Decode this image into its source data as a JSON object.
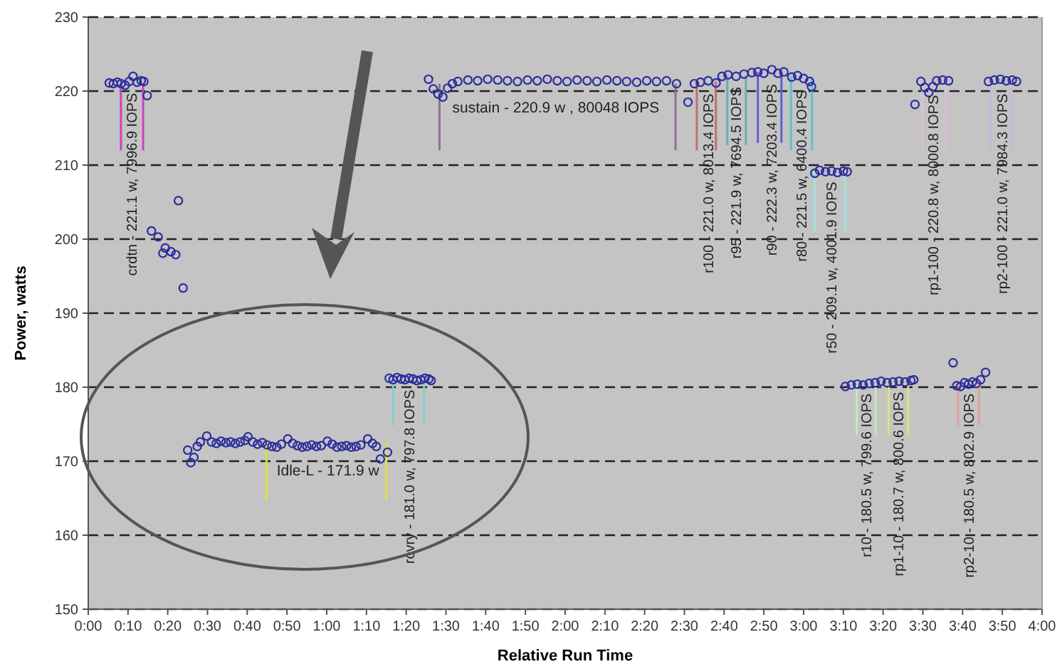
{
  "chart_data": {
    "type": "scatter",
    "xlabel": "Relative Run Time",
    "ylabel": "Power, watts",
    "xlim": [
      0,
      4
    ],
    "ylim": [
      150,
      230
    ],
    "xticks": [
      {
        "value": 0,
        "label": "0:00"
      },
      {
        "value": 0.1667,
        "label": "0:10"
      },
      {
        "value": 0.3333,
        "label": "0:20"
      },
      {
        "value": 0.5,
        "label": "0:30"
      },
      {
        "value": 0.6667,
        "label": "0:40"
      },
      {
        "value": 0.8333,
        "label": "0:50"
      },
      {
        "value": 1,
        "label": "1:00"
      },
      {
        "value": 1.1667,
        "label": "1:10"
      },
      {
        "value": 1.3333,
        "label": "1:20"
      },
      {
        "value": 1.5,
        "label": "1:30"
      },
      {
        "value": 1.6667,
        "label": "1:40"
      },
      {
        "value": 1.8333,
        "label": "1:50"
      },
      {
        "value": 2,
        "label": "2:00"
      },
      {
        "value": 2.1667,
        "label": "2:10"
      },
      {
        "value": 2.3333,
        "label": "2:20"
      },
      {
        "value": 2.5,
        "label": "2:30"
      },
      {
        "value": 2.6667,
        "label": "2:40"
      },
      {
        "value": 2.8333,
        "label": "2:50"
      },
      {
        "value": 3,
        "label": "3:00"
      },
      {
        "value": 3.1667,
        "label": "3:10"
      },
      {
        "value": 3.3333,
        "label": "3:20"
      },
      {
        "value": 3.5,
        "label": "3:30"
      },
      {
        "value": 3.6667,
        "label": "3:40"
      },
      {
        "value": 3.8333,
        "label": "3:50"
      },
      {
        "value": 4,
        "label": "4:00"
      }
    ],
    "yticks": [
      150,
      160,
      170,
      180,
      190,
      200,
      210,
      220,
      230
    ],
    "grid": "y",
    "marker": "circle",
    "series": [
      {
        "type": "line",
        "marker": "none",
        "color": "#d040c0",
        "x": [
          0.137,
          0.137
        ],
        "values": [
          221,
          212
        ]
      },
      {
        "type": "line",
        "marker": "none",
        "color": "#d040c0",
        "x": [
          0.23,
          0.23
        ],
        "values": [
          221,
          212
        ]
      },
      {
        "type": "line",
        "marker": "none",
        "color": "#e0e040",
        "x": [
          0.747,
          0.747
        ],
        "values": [
          172.5,
          164.7
        ]
      },
      {
        "type": "line",
        "marker": "none",
        "color": "#e0e040",
        "x": [
          1.25,
          1.25
        ],
        "values": [
          172.5,
          164.7
        ]
      },
      {
        "type": "line",
        "marker": "none",
        "color": "#80d0d0",
        "x": [
          1.278,
          1.278
        ],
        "values": [
          181,
          174.8
        ]
      },
      {
        "type": "line",
        "marker": "none",
        "color": "#80d0d0",
        "x": [
          1.408,
          1.408
        ],
        "values": [
          181,
          174.8
        ]
      },
      {
        "type": "line",
        "marker": "none",
        "color": "#907090",
        "x": [
          1.473,
          1.473
        ],
        "values": [
          221,
          212
        ]
      },
      {
        "type": "line",
        "marker": "none",
        "color": "#907090",
        "x": [
          2.463,
          2.463
        ],
        "values": [
          221,
          212
        ]
      },
      {
        "type": "line",
        "marker": "none",
        "color": "#c07070",
        "x": [
          2.552,
          2.552
        ],
        "values": [
          221.3,
          212
        ]
      },
      {
        "type": "line",
        "marker": "none",
        "color": "#c07070",
        "x": [
          2.632,
          2.632
        ],
        "values": [
          221.3,
          212
        ]
      },
      {
        "type": "line",
        "marker": "none",
        "color": "#60b0b0",
        "x": [
          2.68,
          2.68
        ],
        "values": [
          222,
          212.7
        ]
      },
      {
        "type": "line",
        "marker": "none",
        "color": "#60b0b0",
        "x": [
          2.758,
          2.758
        ],
        "values": [
          222,
          212.7
        ]
      },
      {
        "type": "line",
        "marker": "none",
        "color": "#6060d0",
        "x": [
          2.808,
          2.808
        ],
        "values": [
          222.5,
          213
        ]
      },
      {
        "type": "line",
        "marker": "none",
        "color": "#6060d0",
        "x": [
          2.907,
          2.907
        ],
        "values": [
          222.5,
          213
        ]
      },
      {
        "type": "line",
        "marker": "none",
        "color": "#60c0d0",
        "x": [
          2.947,
          2.947
        ],
        "values": [
          222,
          212
        ]
      },
      {
        "type": "line",
        "marker": "none",
        "color": "#60c0d0",
        "x": [
          3.035,
          3.035
        ],
        "values": [
          222,
          212
        ]
      },
      {
        "type": "line",
        "marker": "none",
        "color": "#a0e0e0",
        "x": [
          3.045,
          3.045
        ],
        "values": [
          209,
          201
        ]
      },
      {
        "type": "line",
        "marker": "none",
        "color": "#a0e0e0",
        "x": [
          3.173,
          3.173
        ],
        "values": [
          209,
          201
        ]
      },
      {
        "type": "line",
        "marker": "none",
        "color": "#c8e8c0",
        "x": [
          3.223,
          3.223
        ],
        "values": [
          180.3,
          173.5
        ]
      },
      {
        "type": "line",
        "marker": "none",
        "color": "#c8e8c0",
        "x": [
          3.302,
          3.302
        ],
        "values": [
          180.3,
          173.5
        ]
      },
      {
        "type": "line",
        "marker": "none",
        "color": "#e0e080",
        "x": [
          3.357,
          3.357
        ],
        "values": [
          180.7,
          173.5
        ]
      },
      {
        "type": "line",
        "marker": "none",
        "color": "#e0e080",
        "x": [
          3.438,
          3.438
        ],
        "values": [
          180.7,
          173.5
        ]
      },
      {
        "type": "line",
        "marker": "none",
        "color": "#d8c0d8",
        "x": [
          3.497,
          3.497
        ],
        "values": [
          221,
          212
        ]
      },
      {
        "type": "line",
        "marker": "none",
        "color": "#d8c0d8",
        "x": [
          3.597,
          3.597
        ],
        "values": [
          221,
          212
        ]
      },
      {
        "type": "line",
        "marker": "none",
        "color": "#e0a0a0",
        "x": [
          3.647,
          3.647
        ],
        "values": [
          180.5,
          174.8
        ]
      },
      {
        "type": "line",
        "marker": "none",
        "color": "#e0a0a0",
        "x": [
          3.735,
          3.735
        ],
        "values": [
          180.5,
          174.8
        ]
      },
      {
        "type": "line",
        "marker": "none",
        "color": "#c8b8d8",
        "x": [
          3.785,
          3.785
        ],
        "values": [
          221,
          212
        ]
      },
      {
        "type": "line",
        "marker": "none",
        "color": "#c8b8d8",
        "x": [
          3.873,
          3.873
        ],
        "values": [
          221,
          212
        ]
      },
      {
        "color": "#2c2c9c",
        "x": [
          0.088,
          0.105,
          0.122,
          0.138,
          0.155,
          0.172,
          0.188,
          0.205,
          0.222,
          0.233,
          0.247,
          0.265,
          0.293,
          0.313,
          0.323,
          0.347,
          0.367,
          0.378,
          0.398
        ],
        "values": [
          221.1,
          221.0,
          221.2,
          221.0,
          220.8,
          221.3,
          222.0,
          221.2,
          221.4,
          221.3,
          219.4,
          201.1,
          200.3,
          198.1,
          198.8,
          198.3,
          197.9,
          205.2,
          193.4
        ]
      },
      {
        "color": "#2c2c9c",
        "x": [
          0.417,
          0.43,
          0.443,
          0.457,
          0.47,
          0.497,
          0.517,
          0.537,
          0.557,
          0.577,
          0.597,
          0.617,
          0.637,
          0.657,
          0.67,
          0.69,
          0.71,
          0.73,
          0.75,
          0.77,
          0.79,
          0.81,
          0.837,
          0.857,
          0.877,
          0.897,
          0.917,
          0.937,
          0.957,
          0.977,
          1.003,
          1.023,
          1.043,
          1.063,
          1.083,
          1.103,
          1.123,
          1.143,
          1.172,
          1.192,
          1.208,
          1.225,
          1.255
        ],
        "values": [
          171.5,
          169.8,
          170.5,
          172.0,
          172.6,
          173.4,
          172.6,
          172.4,
          172.7,
          172.5,
          172.6,
          172.4,
          172.6,
          172.8,
          173.3,
          172.6,
          172.3,
          172.5,
          172.2,
          172.0,
          171.9,
          172.3,
          173.0,
          172.4,
          172.1,
          171.9,
          172.0,
          172.2,
          172.0,
          172.1,
          172.7,
          172.3,
          171.9,
          172.0,
          172.1,
          171.9,
          172.0,
          172.2,
          173.0,
          172.4,
          172.0,
          170.3,
          171.2
        ]
      },
      {
        "color": "#2c2c9c",
        "x": [
          1.262,
          1.278,
          1.295,
          1.312,
          1.328,
          1.345,
          1.362,
          1.378,
          1.395,
          1.412,
          1.428,
          1.438
        ],
        "values": [
          181.2,
          181.0,
          181.3,
          181.1,
          181.0,
          181.2,
          181.1,
          180.9,
          181.0,
          181.2,
          181.1,
          180.9
        ]
      },
      {
        "color": "#2c2c9c",
        "x": [
          1.427,
          1.447,
          1.467,
          1.487,
          1.507,
          1.527,
          1.55,
          1.592,
          1.633,
          1.675,
          1.717,
          1.758,
          1.8,
          1.842,
          1.883,
          1.925,
          1.967,
          2.008,
          2.05,
          2.092,
          2.133,
          2.175,
          2.217,
          2.258,
          2.3,
          2.342,
          2.383,
          2.425,
          2.467,
          2.515,
          2.542
        ],
        "values": [
          221.6,
          220.3,
          219.6,
          219.2,
          220.4,
          221.0,
          221.3,
          221.5,
          221.4,
          221.6,
          221.5,
          221.4,
          221.3,
          221.5,
          221.4,
          221.6,
          221.4,
          221.3,
          221.5,
          221.4,
          221.3,
          221.5,
          221.4,
          221.3,
          221.2,
          221.4,
          221.3,
          221.4,
          221.0,
          218.5,
          221.0
        ]
      },
      {
        "color": "#2c2c9c",
        "x": [
          2.567,
          2.6,
          2.633,
          2.658,
          2.683,
          2.717,
          2.75,
          2.783,
          2.808,
          2.833,
          2.867,
          2.892,
          2.917,
          2.95,
          2.975,
          3.0,
          3.025,
          3.033
        ],
        "values": [
          221.2,
          221.4,
          221.1,
          222.0,
          222.2,
          222.0,
          222.3,
          222.5,
          222.6,
          222.4,
          222.9,
          222.4,
          222.6,
          221.9,
          222.1,
          221.7,
          221.3,
          220.6
        ]
      },
      {
        "color": "#2c2c9c",
        "x": [
          3.047,
          3.067,
          3.092,
          3.117,
          3.142,
          3.167,
          3.183
        ],
        "values": [
          208.9,
          209.3,
          209.1,
          209.2,
          209.0,
          209.2,
          209.1
        ]
      },
      {
        "color": "#2c2c9c",
        "x": [
          3.175,
          3.2,
          3.225,
          3.25,
          3.275,
          3.3,
          3.325,
          3.35,
          3.375,
          3.4,
          3.425,
          3.45,
          3.462
        ],
        "values": [
          180.1,
          180.3,
          180.4,
          180.3,
          180.5,
          180.6,
          180.8,
          180.6,
          180.7,
          180.8,
          180.7,
          180.9,
          181.0
        ]
      },
      {
        "color": "#2c2c9c",
        "x": [
          3.467,
          3.492,
          3.508,
          3.525,
          3.542,
          3.558,
          3.583,
          3.608
        ],
        "values": [
          218.2,
          221.3,
          220.5,
          219.8,
          220.6,
          221.4,
          221.5,
          221.4
        ]
      },
      {
        "color": "#2c2c9c",
        "x": [
          3.627,
          3.642,
          3.658,
          3.675,
          3.692,
          3.708,
          3.725,
          3.742,
          3.763
        ],
        "values": [
          183.3,
          180.2,
          180.1,
          180.6,
          180.4,
          180.7,
          180.5,
          181.0,
          182.0
        ]
      },
      {
        "color": "#2c2c9c",
        "x": [
          3.775,
          3.8,
          3.825,
          3.85,
          3.875,
          3.893
        ],
        "values": [
          221.3,
          221.5,
          221.6,
          221.4,
          221.5,
          221.3
        ]
      }
    ],
    "annotations": [
      {
        "text": "crdtn - 221.1 w, 7996.9 IOPS",
        "x": 0.183,
        "y": 221.1
      },
      {
        "text": "Idle-L - 171.9 w",
        "x": 0.79,
        "y": 171.9
      },
      {
        "text": "rcvry - 181.0 w, 797.8 IOPS",
        "x": 1.345,
        "y": 181.0
      },
      {
        "text": "sustain - 220.9 w , 80048 IOPS",
        "x": 1.527,
        "y": 220.9
      },
      {
        "text": "r100 - 221.0 w, 8013.4 IOPS",
        "x": 2.6,
        "y": 221.0
      },
      {
        "text": "r95 - 221.9 w, 7694.5 IOPS",
        "x": 2.717,
        "y": 221.9
      },
      {
        "text": "r90 - 222.3 w, 7203.4 IOPS",
        "x": 2.867,
        "y": 222.3
      },
      {
        "text": "r80 - 221.5 w, 6400.4 IOPS",
        "x": 2.99,
        "y": 221.5
      },
      {
        "text": "r50 - 209.1 w, 4001.9 IOPS",
        "x": 3.117,
        "y": 209.1
      },
      {
        "text": "r10 - 180.5 w, 799.6 IOPS",
        "x": 3.262,
        "y": 180.5
      },
      {
        "text": "rp1-10 - 180.7 w, 800.6 IOPS",
        "x": 3.397,
        "y": 180.7
      },
      {
        "text": "rp1-100 - 220.8 w, 8000.8 IOPS",
        "x": 3.542,
        "y": 220.8
      },
      {
        "text": "rp2-10 - 180.5 w, 802.9 IOPS",
        "x": 3.692,
        "y": 180.5
      },
      {
        "text": "rp2-100 - 221.0 w, 7984.3 IOPS",
        "x": 3.833,
        "y": 221.0
      }
    ]
  }
}
